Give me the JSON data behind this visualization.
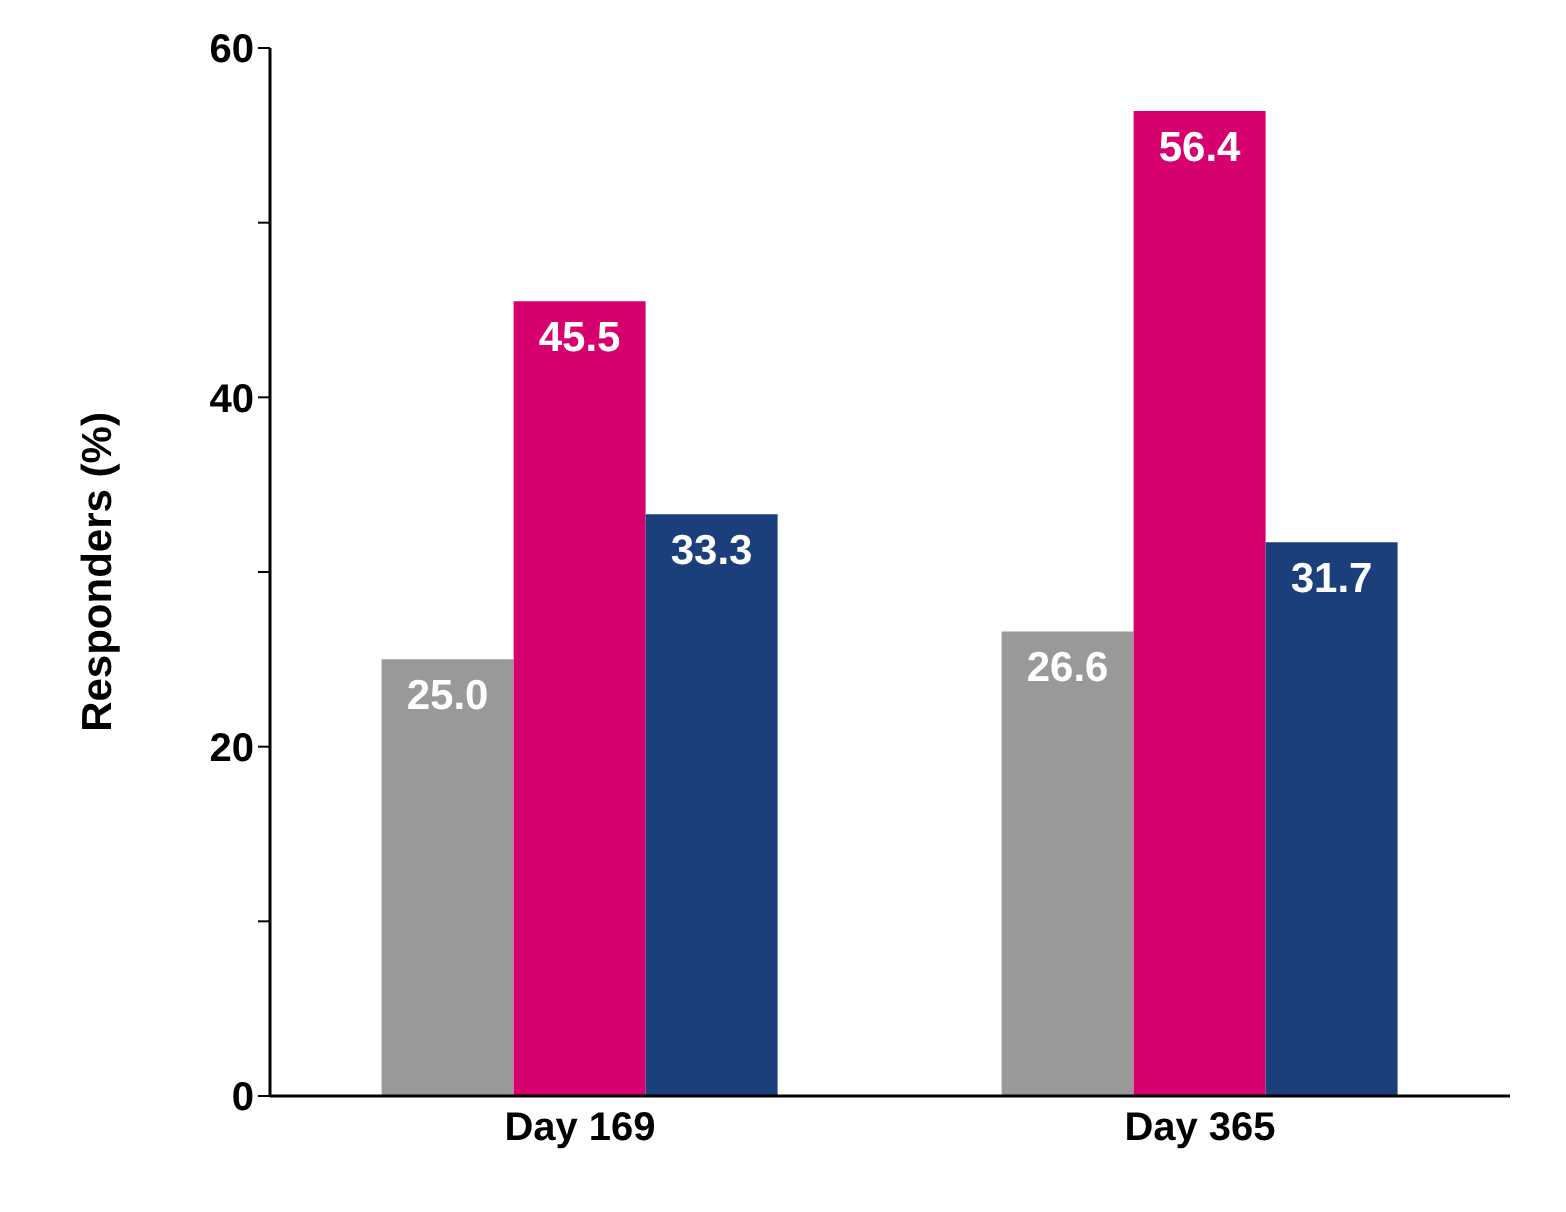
{
  "chart_data": {
    "type": "bar",
    "ylabel": "Responders (%)",
    "categories": [
      "Day 169",
      "Day 365"
    ],
    "series": [
      {
        "color": "#999999",
        "values": [
          25.0,
          26.6
        ],
        "value_labels": [
          "25.0",
          "26.6"
        ]
      },
      {
        "color": "#d6006f",
        "values": [
          45.5,
          56.4
        ],
        "value_labels": [
          "45.5",
          "56.4"
        ]
      },
      {
        "color": "#1b3f7a",
        "values": [
          33.3,
          31.7
        ],
        "value_labels": [
          "33.3",
          "31.7"
        ]
      }
    ],
    "ylim": [
      0,
      60
    ],
    "yticks": [
      0,
      {
        "value": 10,
        "label": null
      },
      20,
      {
        "value": 30,
        "label": null
      },
      40,
      {
        "value": 50,
        "label": null
      },
      60
    ],
    "grid": false,
    "legend": false
  }
}
